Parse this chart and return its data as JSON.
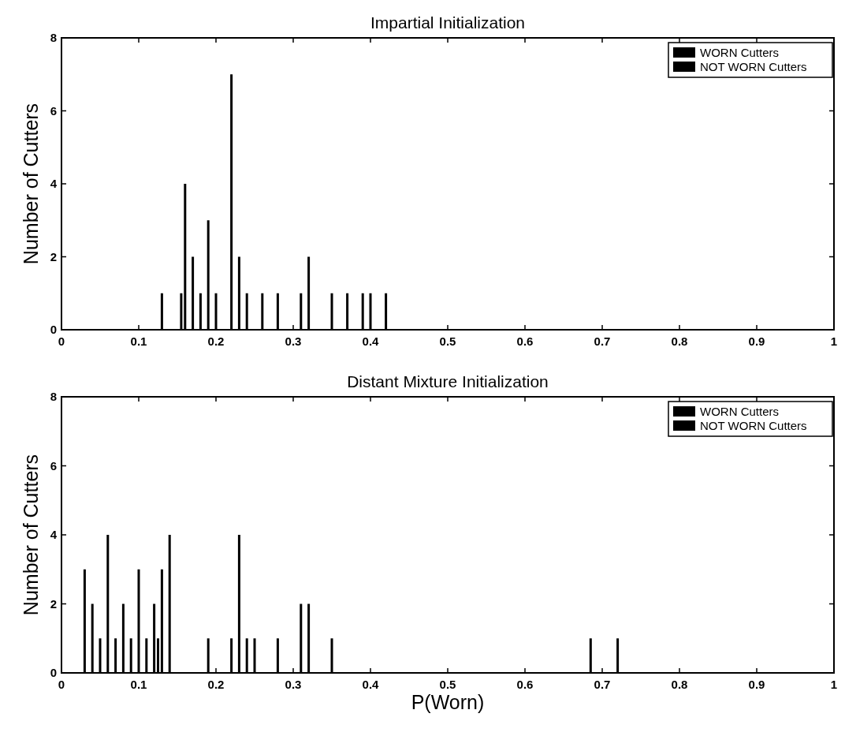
{
  "chart_data": [
    {
      "type": "bar",
      "title": "Impartial Initialization",
      "ylabel": "Number of Cutters",
      "xlim": [
        0,
        1
      ],
      "ylim": [
        0,
        8
      ],
      "xticks": [
        0,
        0.1,
        0.2,
        0.3,
        0.4,
        0.5,
        0.6,
        0.7,
        0.8,
        0.9,
        1
      ],
      "yticks": [
        0,
        2,
        4,
        6,
        8
      ],
      "legend": "top right",
      "grid": false,
      "series": [
        {
          "name": "WORN Cutters",
          "color": "#000000"
        },
        {
          "name": "NOT WORN Cutters",
          "color": "#000000",
          "x": [
            0.13,
            0.155,
            0.16,
            0.17,
            0.18,
            0.19,
            0.2,
            0.22,
            0.23,
            0.24,
            0.26,
            0.28,
            0.31,
            0.32,
            0.35,
            0.37,
            0.39,
            0.4,
            0.42
          ],
          "values": [
            1,
            1,
            4,
            2,
            1,
            3,
            1,
            7,
            2,
            1,
            1,
            1,
            1,
            2,
            1,
            1,
            1,
            1,
            1
          ]
        }
      ]
    },
    {
      "type": "bar",
      "title": "Distant Mixture Initialization",
      "xlabel": "P(Worn)",
      "ylabel": "Number of Cutters",
      "xlim": [
        0,
        1
      ],
      "ylim": [
        0,
        8
      ],
      "xticks": [
        0,
        0.1,
        0.2,
        0.3,
        0.4,
        0.5,
        0.6,
        0.7,
        0.8,
        0.9,
        1
      ],
      "yticks": [
        0,
        2,
        4,
        6,
        8
      ],
      "legend": "top right",
      "grid": false,
      "series": [
        {
          "name": "WORN Cutters",
          "color": "#000000"
        },
        {
          "name": "NOT WORN Cutters",
          "color": "#000000",
          "x": [
            0.03,
            0.04,
            0.05,
            0.06,
            0.07,
            0.08,
            0.09,
            0.1,
            0.11,
            0.12,
            0.125,
            0.13,
            0.14,
            0.19,
            0.22,
            0.23,
            0.24,
            0.25,
            0.28,
            0.31,
            0.32,
            0.35,
            0.685,
            0.72
          ],
          "values": [
            3,
            2,
            1,
            4,
            1,
            2,
            1,
            3,
            1,
            2,
            1,
            3,
            4,
            1,
            1,
            4,
            1,
            1,
            1,
            2,
            2,
            1,
            1,
            1
          ]
        }
      ]
    }
  ]
}
